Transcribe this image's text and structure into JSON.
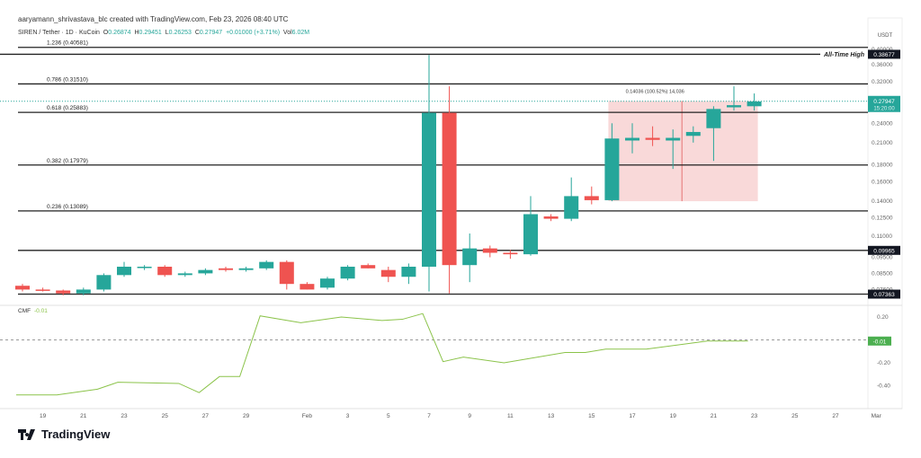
{
  "header": {
    "credit": "aaryamann_shrivastava_blc created with TradingView.com, Feb 23, 2026 08:40 UTC",
    "symbol": "SIREN / Tether · 1D · KuCoin",
    "o_label": "O",
    "o": "0.26874",
    "h_label": "H",
    "h": "0.29451",
    "l_label": "L",
    "l": "0.26253",
    "c_label": "C",
    "c": "0.27947",
    "change": "+0.01000 (+3.71%)",
    "vol_label": "Vol",
    "vol": "6.02M"
  },
  "footer": {
    "brand": "TradingView",
    "logo_icon": "tradingview-logo-icon"
  },
  "colors": {
    "up": "#26a69a",
    "down": "#ef5350",
    "cmf": "#8bc34a",
    "box": "#f6c9c9"
  },
  "chart_data": [
    {
      "type": "candlestick",
      "scale": "log",
      "currency": "USDT",
      "y_ticks": [
        "0.40000",
        "0.36000",
        "0.32000",
        "0.24000",
        "0.21000",
        "0.18000",
        "0.16000",
        "0.14000",
        "0.12500",
        "0.11000",
        "0.09500",
        "0.08500",
        "0.07600"
      ],
      "y_tick_values": [
        0.4,
        0.36,
        0.32,
        0.24,
        0.21,
        0.18,
        0.16,
        0.14,
        0.125,
        0.11,
        0.095,
        0.085,
        0.076
      ],
      "x_ticks": [
        "19",
        "21",
        "23",
        "25",
        "27",
        "29",
        "Feb",
        "3",
        "5",
        "7",
        "9",
        "11",
        "13",
        "15",
        "17",
        "19",
        "21",
        "23",
        "25",
        "27",
        "Mar"
      ],
      "dates": [
        "Jan 18",
        "Jan 19",
        "Jan 20",
        "Jan 21",
        "Jan 22",
        "Jan 23",
        "Jan 24",
        "Jan 25",
        "Jan 26",
        "Jan 27",
        "Jan 28",
        "Jan 29",
        "Jan 30",
        "Jan 31",
        "Feb 1",
        "Feb 2",
        "Feb 3",
        "Feb 4",
        "Feb 5",
        "Feb 6",
        "Feb 7",
        "Feb 8",
        "Feb 9",
        "Feb 10",
        "Feb 11",
        "Feb 12",
        "Feb 13",
        "Feb 14",
        "Feb 15",
        "Feb 16",
        "Feb 17",
        "Feb 18",
        "Feb 19",
        "Feb 20",
        "Feb 21",
        "Feb 22",
        "Feb 23"
      ],
      "ohlc": [
        [
          0.078,
          0.079,
          0.075,
          0.076
        ],
        [
          0.076,
          0.077,
          0.075,
          0.0755
        ],
        [
          0.0755,
          0.076,
          0.073,
          0.074
        ],
        [
          0.074,
          0.077,
          0.073,
          0.076
        ],
        [
          0.076,
          0.085,
          0.075,
          0.084
        ],
        [
          0.084,
          0.092,
          0.083,
          0.089
        ],
        [
          0.0885,
          0.09,
          0.087,
          0.089
        ],
        [
          0.089,
          0.09,
          0.083,
          0.084
        ],
        [
          0.084,
          0.086,
          0.083,
          0.085
        ],
        [
          0.085,
          0.088,
          0.084,
          0.087
        ],
        [
          0.088,
          0.089,
          0.086,
          0.087
        ],
        [
          0.087,
          0.089,
          0.086,
          0.088
        ],
        [
          0.088,
          0.093,
          0.087,
          0.092
        ],
        [
          0.092,
          0.093,
          0.076,
          0.079
        ],
        [
          0.079,
          0.08,
          0.076,
          0.076
        ],
        [
          0.077,
          0.083,
          0.076,
          0.082
        ],
        [
          0.082,
          0.09,
          0.081,
          0.089
        ],
        [
          0.09,
          0.091,
          0.088,
          0.088
        ],
        [
          0.087,
          0.089,
          0.08,
          0.083
        ],
        [
          0.083,
          0.091,
          0.079,
          0.089
        ],
        [
          0.089,
          0.385,
          0.075,
          0.258
        ],
        [
          0.258,
          0.31,
          0.074,
          0.09
        ],
        [
          0.09,
          0.112,
          0.08,
          0.101
        ],
        [
          0.101,
          0.103,
          0.095,
          0.098
        ],
        [
          0.098,
          0.1,
          0.094,
          0.097
        ],
        [
          0.097,
          0.145,
          0.096,
          0.128
        ],
        [
          0.126,
          0.128,
          0.122,
          0.124
        ],
        [
          0.124,
          0.165,
          0.122,
          0.145
        ],
        [
          0.145,
          0.155,
          0.137,
          0.141
        ],
        [
          0.141,
          0.24,
          0.14,
          0.216
        ],
        [
          0.213,
          0.24,
          0.195,
          0.217
        ],
        [
          0.217,
          0.235,
          0.205,
          0.214
        ],
        [
          0.213,
          0.23,
          0.175,
          0.217
        ],
        [
          0.22,
          0.235,
          0.21,
          0.226
        ],
        [
          0.232,
          0.27,
          0.185,
          0.265
        ],
        [
          0.268,
          0.31,
          0.262,
          0.272
        ],
        [
          0.27,
          0.295,
          0.262,
          0.279
        ]
      ],
      "levels": [
        {
          "label": "1.236 (0.40581)",
          "value": 0.40581
        },
        {
          "label": "All-Time High",
          "value": 0.38677,
          "badge": "0.38677"
        },
        {
          "label": "0.786 (0.31510)",
          "value": 0.3151
        },
        {
          "label": "0.618 (0.25883)",
          "value": 0.25883
        },
        {
          "label": "0.382 (0.17979)",
          "value": 0.17979
        },
        {
          "label": "0.236 (0.13089)",
          "value": 0.13089
        },
        {
          "label": "",
          "value": 0.09965,
          "badge": "0.09965"
        },
        {
          "label": "",
          "value": 0.07363,
          "badge": "0.07363"
        }
      ],
      "last_price": {
        "value": "0.27947",
        "countdown": "15:20:00"
      },
      "measure": {
        "from_date": "Feb 16",
        "to_date": "Feb 23",
        "low": 0.14,
        "high": 0.28,
        "label": "0.14036 (100.52%) 14,036",
        "mid_date": "Feb 19"
      }
    },
    {
      "type": "line",
      "name": "CMF",
      "value_label": "-0.01",
      "y_ticks": [
        "0.20",
        "-0.20",
        "-0.40"
      ],
      "y_tick_values": [
        0.2,
        -0.2,
        -0.4
      ],
      "zero_line": true,
      "dates": [
        "Jan 18",
        "Jan 20",
        "Jan 22",
        "Jan 23",
        "Jan 26",
        "Jan 27",
        "Jan 28",
        "Jan 29",
        "Jan 30",
        "Feb 1",
        "Feb 3",
        "Feb 5",
        "Feb 6",
        "Feb 7",
        "Feb 8",
        "Feb 9",
        "Feb 11",
        "Feb 14",
        "Feb 15",
        "Feb 16",
        "Feb 18",
        "Feb 21",
        "Feb 23"
      ],
      "values": [
        -0.48,
        -0.48,
        -0.43,
        -0.37,
        -0.38,
        -0.46,
        -0.32,
        -0.32,
        0.21,
        0.15,
        0.2,
        0.17,
        0.18,
        0.23,
        -0.19,
        -0.15,
        -0.2,
        -0.11,
        -0.11,
        -0.08,
        -0.08,
        -0.01,
        -0.01
      ]
    }
  ]
}
